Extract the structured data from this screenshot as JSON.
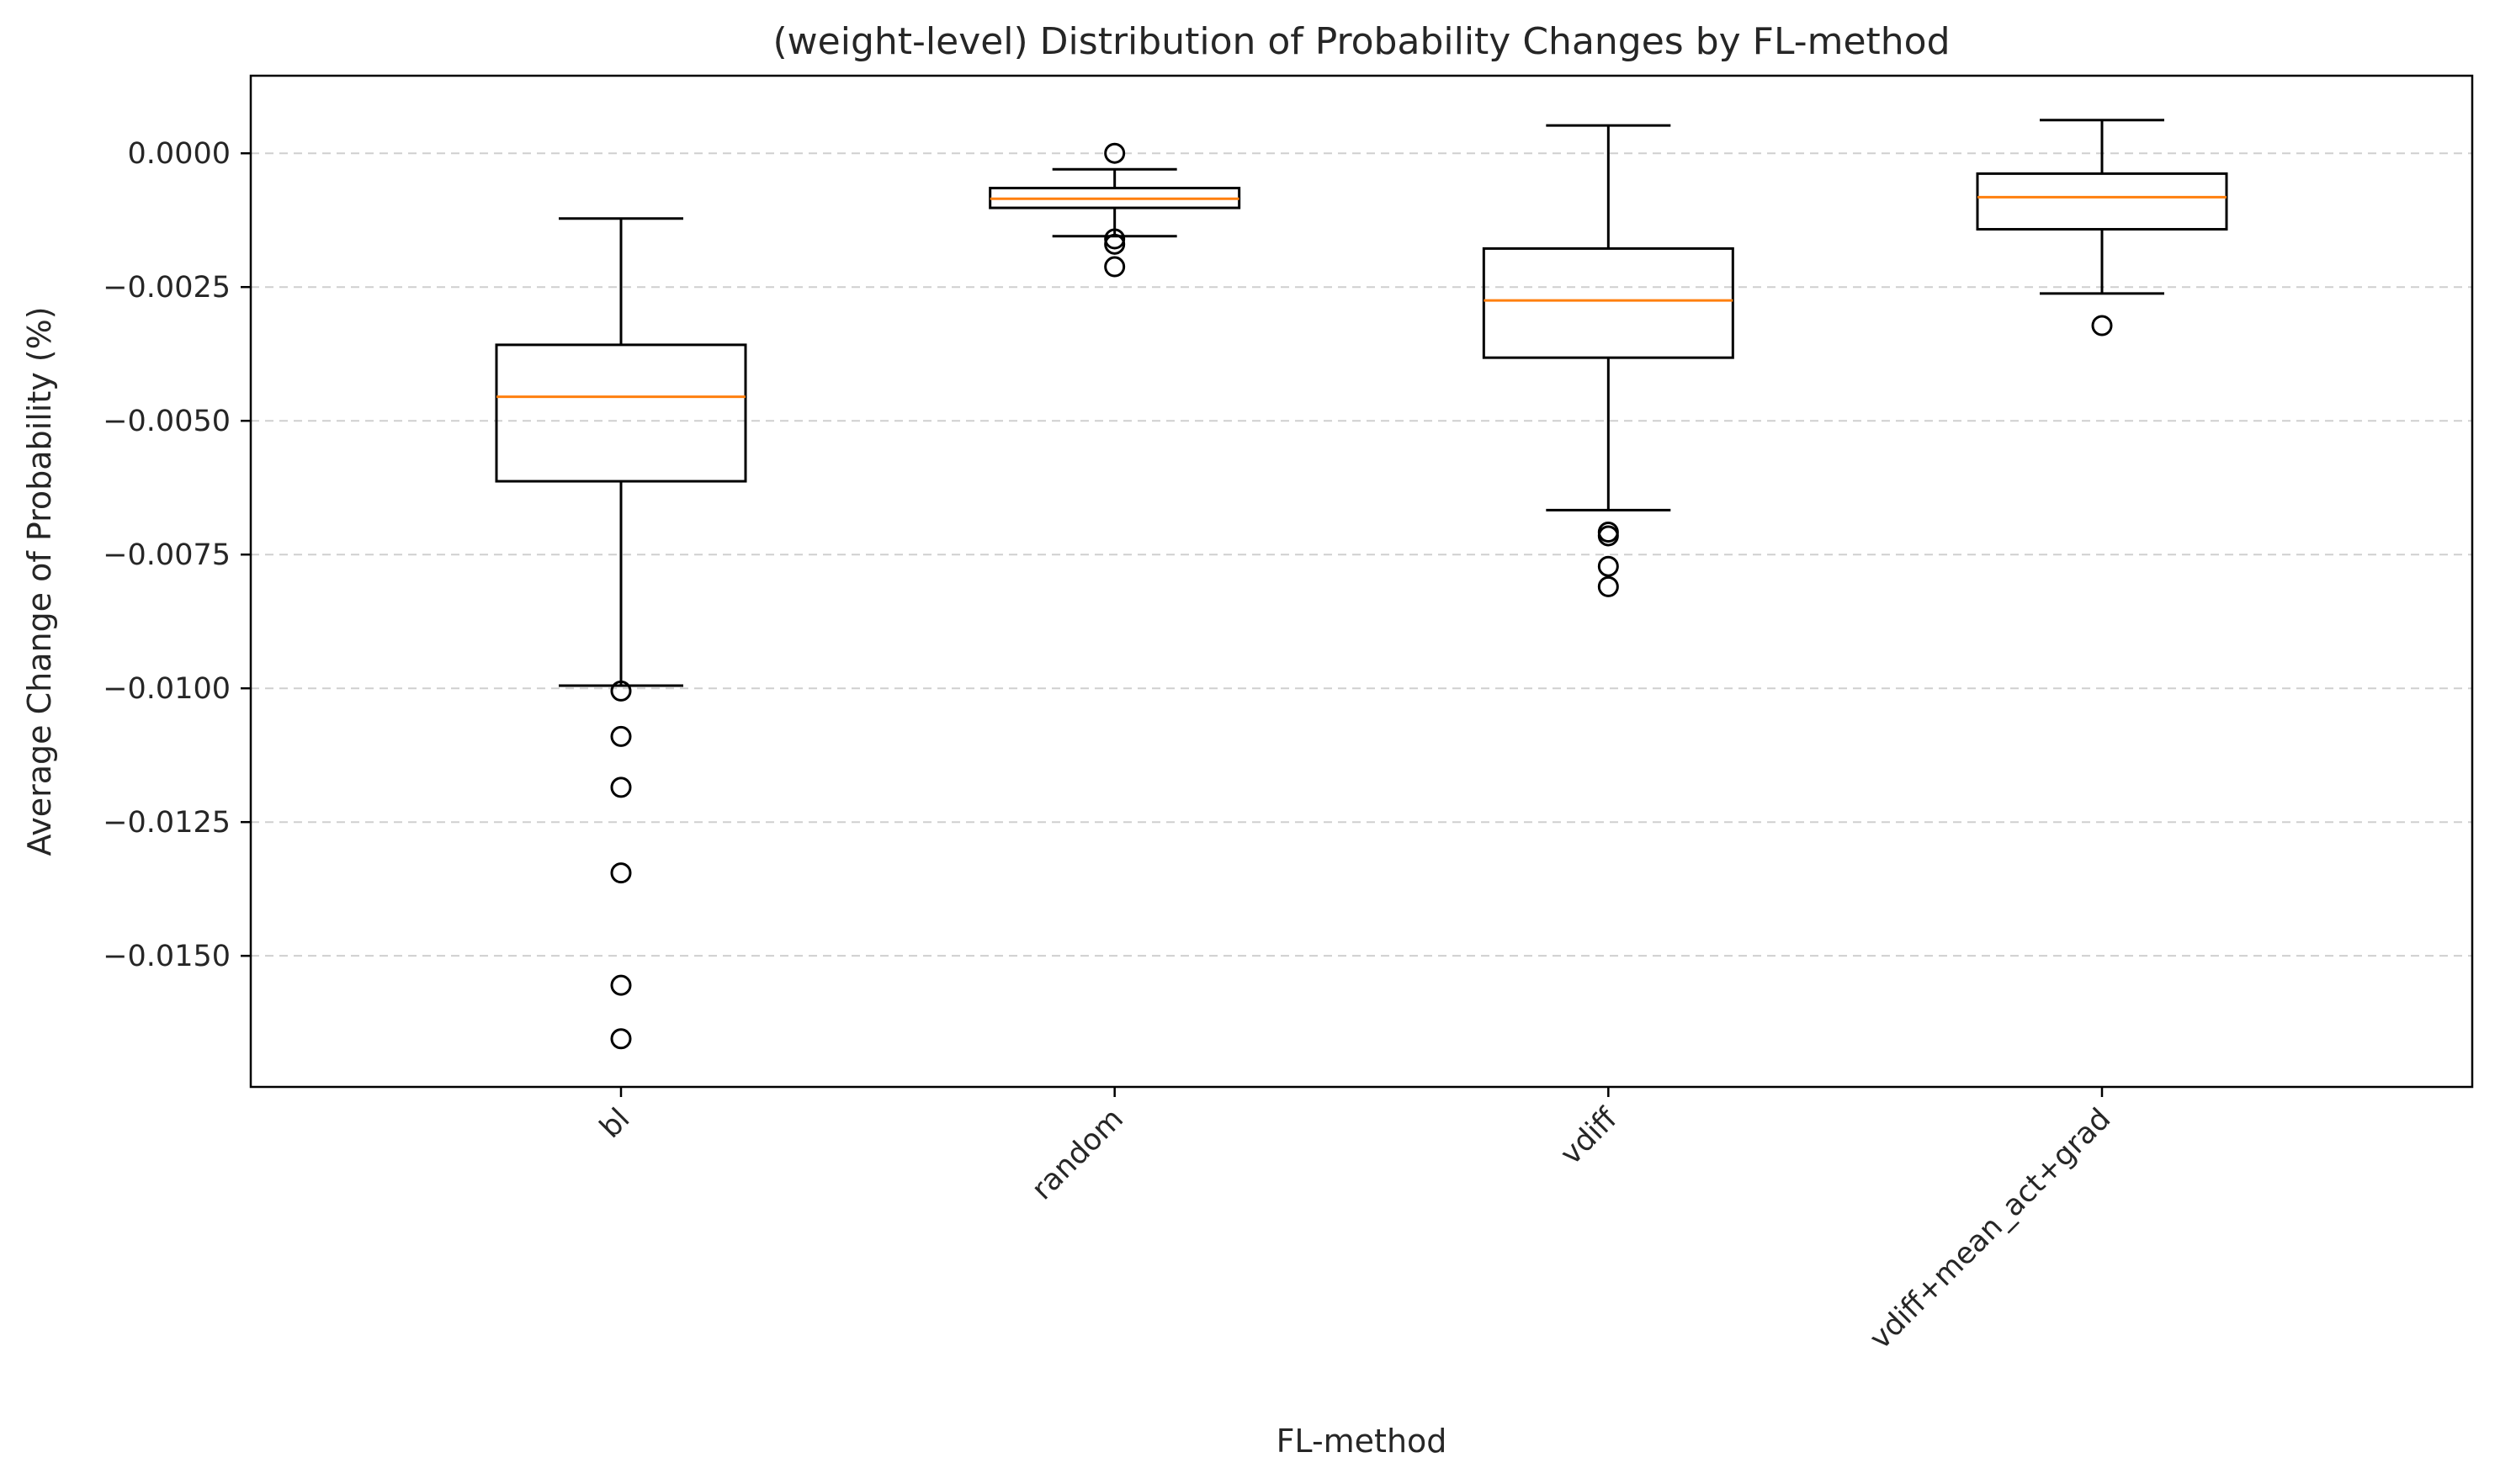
{
  "chart_data": {
    "type": "box",
    "title": "(weight-level) Distribution of Probability Changes by FL-method",
    "xlabel": "FL-method",
    "ylabel": "Average Change of Probability (%)",
    "ylim": [
      -0.01745,
      0.00145
    ],
    "yticks": [
      0.0,
      -0.0025,
      -0.005,
      -0.0075,
      -0.01,
      -0.0125,
      -0.015
    ],
    "ytick_labels": [
      "0.0000",
      "−0.0025",
      "−0.0050",
      "−0.0075",
      "−0.0100",
      "−0.0125",
      "−0.0150"
    ],
    "grid": "y-dashed",
    "categories": [
      "bl",
      "random",
      "vdiff",
      "vdiff+mean_act+grad"
    ],
    "boxes": [
      {
        "category": "bl",
        "whisker_high": -0.00122,
        "q3": -0.00358,
        "median": -0.00455,
        "q1": -0.00613,
        "whisker_low": -0.00995,
        "outliers": [
          -0.01005,
          -0.0109,
          -0.01185,
          -0.01345,
          -0.01555,
          -0.01655
        ]
      },
      {
        "category": "random",
        "whisker_high": -0.0003,
        "q3": -0.00065,
        "median": -0.00085,
        "q1": -0.00102,
        "whisker_low": -0.00155,
        "outliers": [
          0.0,
          -0.0016,
          -0.0017,
          -0.00212
        ]
      },
      {
        "category": "vdiff",
        "whisker_high": 0.00052,
        "q3": -0.00178,
        "median": -0.00275,
        "q1": -0.00382,
        "whisker_low": -0.00667,
        "outliers": [
          -0.00708,
          -0.00715,
          -0.00772,
          -0.0081
        ]
      },
      {
        "category": "vdiff+mean_act+grad",
        "whisker_high": 0.00062,
        "q3": -0.00038,
        "median": -0.00082,
        "q1": -0.00142,
        "whisker_low": -0.00262,
        "outliers": [
          -0.00322
        ]
      }
    ],
    "colors": {
      "box": "#000000",
      "median": "#ff7f0e",
      "grid": "#cfcfcf"
    }
  }
}
